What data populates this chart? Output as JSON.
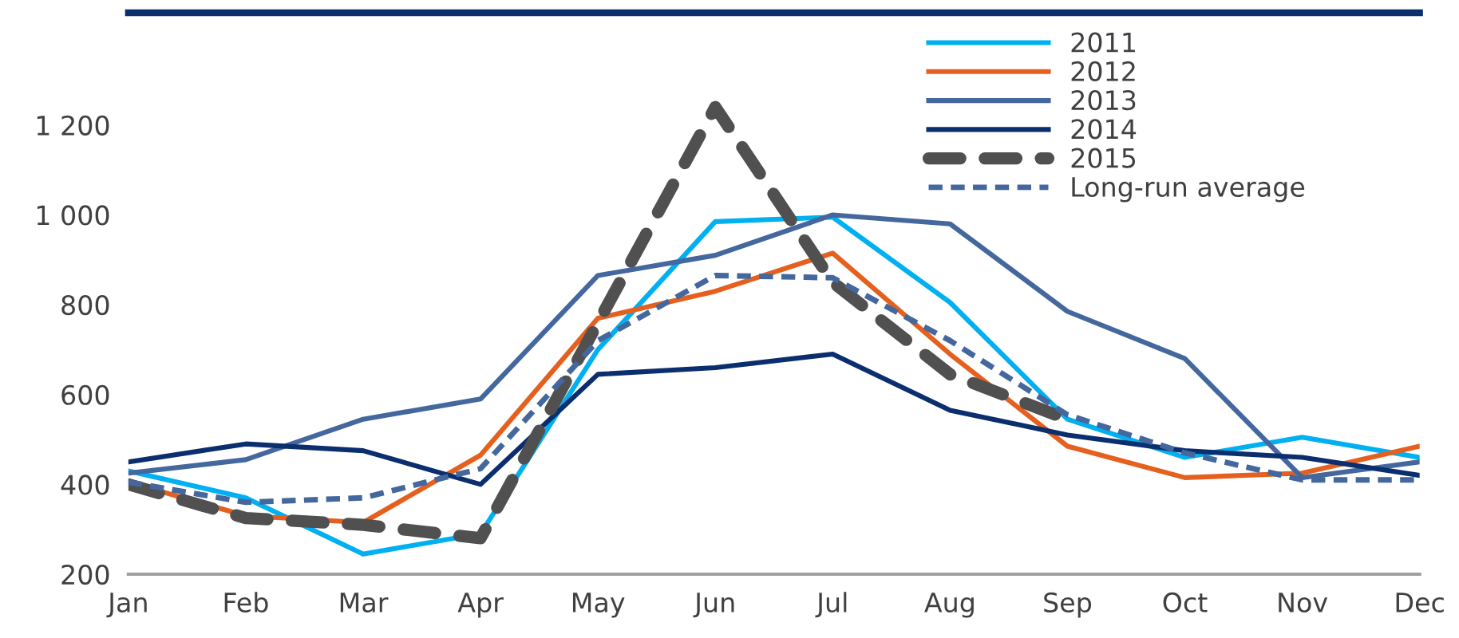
{
  "chart_data": {
    "type": "line",
    "categories": [
      "Jan",
      "Feb",
      "Mar",
      "Apr",
      "May",
      "Jun",
      "Jul",
      "Aug",
      "Sep",
      "Oct",
      "Nov",
      "Dec"
    ],
    "series": [
      {
        "name": "2011",
        "color": "#00b0f0",
        "line_style": "solid",
        "values": [
          430,
          370,
          245,
          290,
          700,
          985,
          995,
          805,
          545,
          460,
          505,
          460
        ]
      },
      {
        "name": "2012",
        "color": "#e5601f",
        "line_style": "solid",
        "values": [
          405,
          330,
          315,
          465,
          770,
          830,
          915,
          690,
          485,
          415,
          425,
          485
        ]
      },
      {
        "name": "2013",
        "color": "#44679e",
        "line_style": "solid",
        "values": [
          425,
          455,
          545,
          590,
          865,
          910,
          1000,
          980,
          785,
          680,
          415,
          450
        ]
      },
      {
        "name": "2014",
        "color": "#0b2e6e",
        "line_style": "solid",
        "values": [
          450,
          490,
          475,
          400,
          645,
          660,
          690,
          565,
          510,
          475,
          460,
          420
        ]
      },
      {
        "name": "2015",
        "color": "#505050",
        "line_style": "dashed",
        "values": [
          400,
          325,
          310,
          280,
          760,
          1240,
          850,
          645,
          545,
          null,
          null,
          null
        ]
      },
      {
        "name": "Long-run average",
        "color": "#44679e",
        "line_style": "dotted",
        "values": [
          405,
          360,
          370,
          435,
          720,
          865,
          860,
          720,
          555,
          470,
          410,
          410
        ]
      }
    ],
    "ylim": [
      200,
      1450
    ],
    "yticks": [
      200,
      400,
      600,
      800,
      {
        "value": 1000,
        "label": "1 000"
      },
      {
        "value": 1200,
        "label": "1 200"
      }
    ],
    "grid": false,
    "legend": "top right",
    "marker": "none"
  }
}
